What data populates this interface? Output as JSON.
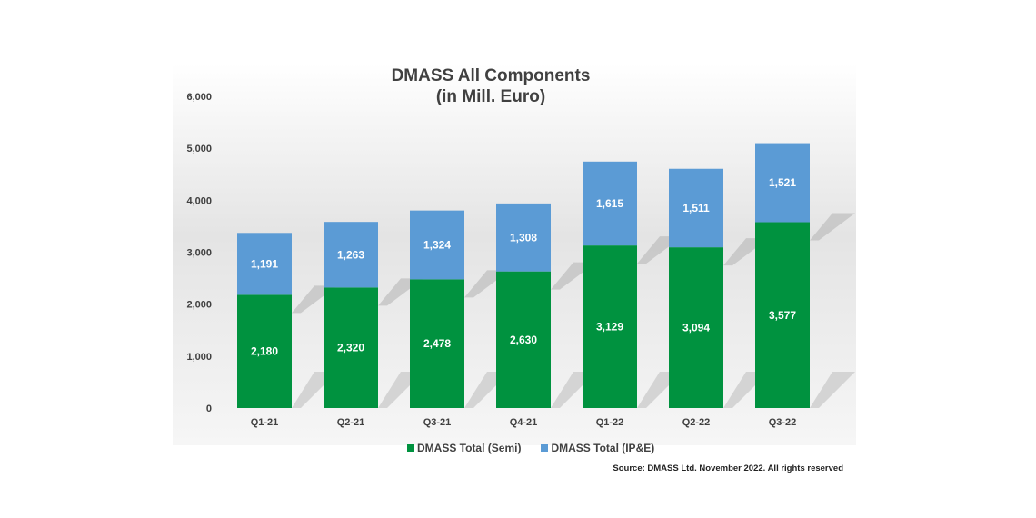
{
  "chart_data": {
    "type": "bar",
    "stacked": true,
    "title": "DMASS All Components",
    "subtitle": "(in Mill. Euro)",
    "categories": [
      "Q1-21",
      "Q2-21",
      "Q3-21",
      "Q4-21",
      "Q1-22",
      "Q2-22",
      "Q3-22"
    ],
    "series": [
      {
        "name": "DMASS Total (Semi)",
        "color": "#00923f",
        "values": [
          2180,
          2320,
          2478,
          2630,
          3129,
          3094,
          3577
        ]
      },
      {
        "name": "DMASS Total (IP&E)",
        "color": "#5b9bd5",
        "values": [
          1191,
          1263,
          1324,
          1308,
          1615,
          1511,
          1521
        ]
      }
    ],
    "ylim": [
      0,
      6000
    ],
    "yticks": [
      0,
      1000,
      2000,
      3000,
      4000,
      5000,
      6000
    ],
    "ytick_labels": [
      "0",
      "1,000",
      "2,000",
      "3,000",
      "4,000",
      "5,000",
      "6,000"
    ],
    "grid": false,
    "legend": "bottom",
    "source": "Source: DMASS Ltd. November 2022. All rights reserved"
  }
}
